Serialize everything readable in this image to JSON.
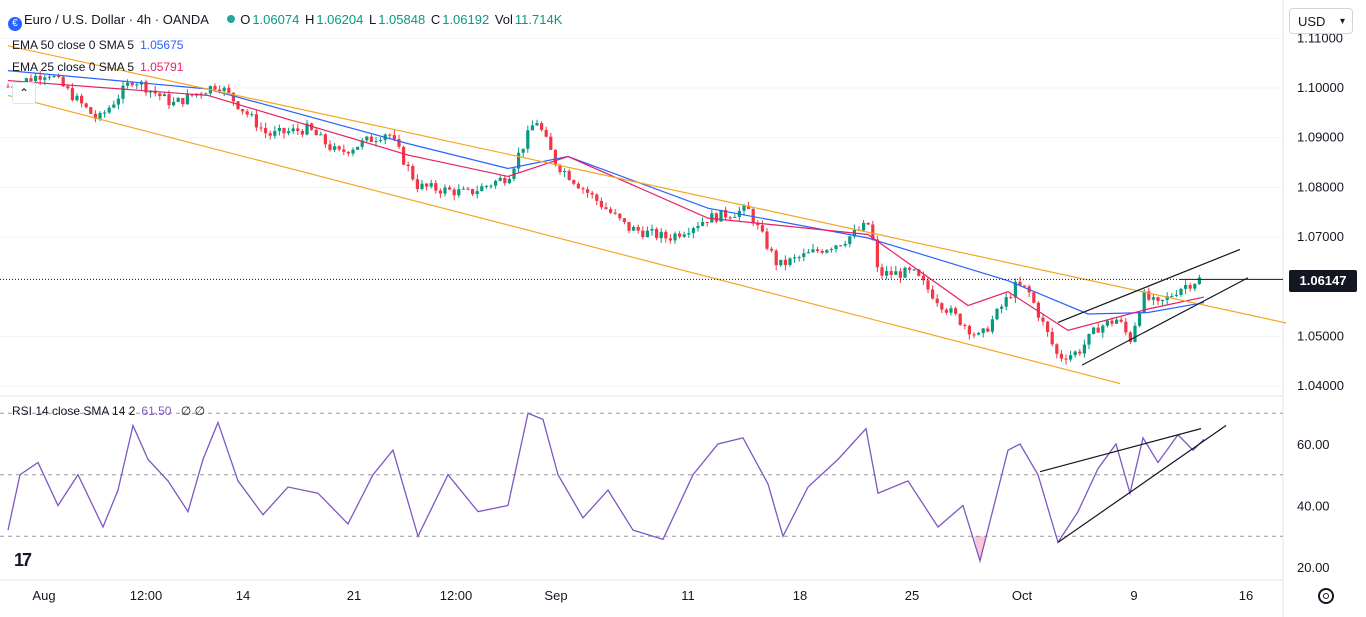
{
  "header": {
    "symbol": "Euro / U.S. Dollar · 4h · OANDA",
    "open_label": "O",
    "open": "1.06074",
    "high_label": "H",
    "high": "1.06204",
    "low_label": "L",
    "low": "1.05848",
    "close_label": "C",
    "close": "1.06192",
    "vol_label": "Vol",
    "vol": "11.714K"
  },
  "indicators": [
    {
      "label": "EMA 50 close 0 SMA 5",
      "value": "1.05675",
      "color": "#2962ff"
    },
    {
      "label": "EMA 25 close 0 SMA 5",
      "value": "1.05791",
      "color": "#e91e63"
    }
  ],
  "rsi": {
    "label": "RSI 14 close SMA 14 2",
    "value": "61.50",
    "extra": "∅ ∅",
    "color": "#7e57c2"
  },
  "currency": "USD",
  "last_price": "1.06147",
  "colors": {
    "up": "#089981",
    "down": "#f23645",
    "ema50": "#2962ff",
    "ema25": "#e91e63",
    "channel": "#f5a623",
    "rsi": "#7e57c2",
    "trend": "#131722",
    "grid": "#f0f3fa"
  },
  "chart_data": [
    {
      "type": "candlestick",
      "y_ticks": [
        "1.11000",
        "1.10000",
        "1.09000",
        "1.08000",
        "1.07000",
        "1.05000",
        "1.04000"
      ],
      "ylim": [
        1.04,
        1.11
      ],
      "x_ticks": [
        "Aug",
        "12:00",
        "14",
        "21",
        "12:00",
        "Sep",
        "11",
        "18",
        "25",
        "Oct",
        "9",
        "16"
      ],
      "close_path": [
        {
          "x": 0,
          "y": 1.1003
        },
        {
          "x": 40,
          "y": 1.1032
        },
        {
          "x": 90,
          "y": 1.0935
        },
        {
          "x": 125,
          "y": 1.1018
        },
        {
          "x": 165,
          "y": 1.0968
        },
        {
          "x": 210,
          "y": 1.1008
        },
        {
          "x": 260,
          "y": 1.0905
        },
        {
          "x": 300,
          "y": 1.0918
        },
        {
          "x": 330,
          "y": 1.0868
        },
        {
          "x": 380,
          "y": 1.0912
        },
        {
          "x": 410,
          "y": 1.0802
        },
        {
          "x": 460,
          "y": 1.0788
        },
        {
          "x": 500,
          "y": 1.0822
        },
        {
          "x": 528,
          "y": 1.0938
        },
        {
          "x": 548,
          "y": 1.0848
        },
        {
          "x": 575,
          "y": 1.0798
        },
        {
          "x": 620,
          "y": 1.0718
        },
        {
          "x": 660,
          "y": 1.0698
        },
        {
          "x": 700,
          "y": 1.0738
        },
        {
          "x": 740,
          "y": 1.0755
        },
        {
          "x": 770,
          "y": 1.0642
        },
        {
          "x": 800,
          "y": 1.0665
        },
        {
          "x": 835,
          "y": 1.0692
        },
        {
          "x": 862,
          "y": 1.0728
        },
        {
          "x": 870,
          "y": 1.0625
        },
        {
          "x": 905,
          "y": 1.0628
        },
        {
          "x": 935,
          "y": 1.0562
        },
        {
          "x": 972,
          "y": 1.0496
        },
        {
          "x": 1008,
          "y": 1.0602
        },
        {
          "x": 1020,
          "y": 1.0592
        },
        {
          "x": 1050,
          "y": 1.0458
        },
        {
          "x": 1070,
          "y": 1.0468
        },
        {
          "x": 1090,
          "y": 1.0518
        },
        {
          "x": 1110,
          "y": 1.0535
        },
        {
          "x": 1122,
          "y": 1.0492
        },
        {
          "x": 1135,
          "y": 1.0582
        },
        {
          "x": 1150,
          "y": 1.0562
        },
        {
          "x": 1172,
          "y": 1.0598
        },
        {
          "x": 1196,
          "y": 1.0619
        }
      ],
      "ema50_path": [
        {
          "x": 0,
          "y": 1.1035
        },
        {
          "x": 200,
          "y": 1.0998
        },
        {
          "x": 400,
          "y": 1.0888
        },
        {
          "x": 500,
          "y": 1.0838
        },
        {
          "x": 560,
          "y": 1.0862
        },
        {
          "x": 700,
          "y": 1.0758
        },
        {
          "x": 860,
          "y": 1.0698
        },
        {
          "x": 1000,
          "y": 1.0612
        },
        {
          "x": 1080,
          "y": 1.0545
        },
        {
          "x": 1140,
          "y": 1.0548
        },
        {
          "x": 1196,
          "y": 1.0568
        }
      ],
      "ema25_path": [
        {
          "x": 0,
          "y": 1.1015
        },
        {
          "x": 200,
          "y": 1.0985
        },
        {
          "x": 400,
          "y": 1.0865
        },
        {
          "x": 500,
          "y": 1.0822
        },
        {
          "x": 560,
          "y": 1.0862
        },
        {
          "x": 700,
          "y": 1.0738
        },
        {
          "x": 860,
          "y": 1.0705
        },
        {
          "x": 960,
          "y": 1.0562
        },
        {
          "x": 1000,
          "y": 1.059
        },
        {
          "x": 1060,
          "y": 1.0512
        },
        {
          "x": 1140,
          "y": 1.0555
        },
        {
          "x": 1196,
          "y": 1.0579
        }
      ],
      "channel_lines": [
        {
          "x1": 0,
          "y1": 1.1085,
          "x2": 1278,
          "y2": 1.0527
        },
        {
          "x1": 0,
          "y1": 1.0985,
          "x2": 1112,
          "y2": 1.0405
        }
      ],
      "wedge_lines": [
        {
          "x1": 1050,
          "y1": 1.0528,
          "x2": 1232,
          "y2": 1.0675
        },
        {
          "x1": 1074,
          "y1": 1.0442,
          "x2": 1240,
          "y2": 1.0618
        }
      ],
      "last_price_value": 1.06147
    },
    {
      "type": "line",
      "series": [
        {
          "name": "RSI",
          "points": [
            {
              "x": 0,
              "y": 32
            },
            {
              "x": 12,
              "y": 50
            },
            {
              "x": 30,
              "y": 54
            },
            {
              "x": 50,
              "y": 40
            },
            {
              "x": 70,
              "y": 50
            },
            {
              "x": 95,
              "y": 33
            },
            {
              "x": 110,
              "y": 45
            },
            {
              "x": 125,
              "y": 66
            },
            {
              "x": 140,
              "y": 55
            },
            {
              "x": 160,
              "y": 48
            },
            {
              "x": 180,
              "y": 38
            },
            {
              "x": 195,
              "y": 55
            },
            {
              "x": 210,
              "y": 67
            },
            {
              "x": 230,
              "y": 48
            },
            {
              "x": 255,
              "y": 37
            },
            {
              "x": 280,
              "y": 46
            },
            {
              "x": 310,
              "y": 44
            },
            {
              "x": 340,
              "y": 34
            },
            {
              "x": 365,
              "y": 50
            },
            {
              "x": 385,
              "y": 58
            },
            {
              "x": 410,
              "y": 30
            },
            {
              "x": 440,
              "y": 50
            },
            {
              "x": 470,
              "y": 38
            },
            {
              "x": 500,
              "y": 40
            },
            {
              "x": 520,
              "y": 70
            },
            {
              "x": 535,
              "y": 68
            },
            {
              "x": 550,
              "y": 50
            },
            {
              "x": 575,
              "y": 36
            },
            {
              "x": 600,
              "y": 45
            },
            {
              "x": 625,
              "y": 32
            },
            {
              "x": 655,
              "y": 29
            },
            {
              "x": 685,
              "y": 50
            },
            {
              "x": 710,
              "y": 60
            },
            {
              "x": 735,
              "y": 62
            },
            {
              "x": 760,
              "y": 47
            },
            {
              "x": 775,
              "y": 30
            },
            {
              "x": 800,
              "y": 46
            },
            {
              "x": 830,
              "y": 55
            },
            {
              "x": 858,
              "y": 65
            },
            {
              "x": 870,
              "y": 44
            },
            {
              "x": 900,
              "y": 48
            },
            {
              "x": 930,
              "y": 33
            },
            {
              "x": 955,
              "y": 40
            },
            {
              "x": 972,
              "y": 22
            },
            {
              "x": 1000,
              "y": 58
            },
            {
              "x": 1012,
              "y": 60
            },
            {
              "x": 1030,
              "y": 50
            },
            {
              "x": 1050,
              "y": 28
            },
            {
              "x": 1070,
              "y": 38
            },
            {
              "x": 1090,
              "y": 52
            },
            {
              "x": 1108,
              "y": 60
            },
            {
              "x": 1122,
              "y": 44
            },
            {
              "x": 1135,
              "y": 62
            },
            {
              "x": 1150,
              "y": 54
            },
            {
              "x": 1170,
              "y": 63
            },
            {
              "x": 1185,
              "y": 58
            },
            {
              "x": 1196,
              "y": 61.5
            }
          ]
        }
      ],
      "y_ticks": [
        "60.00",
        "40.00",
        "20.00"
      ],
      "ylim": [
        15,
        75
      ],
      "levels": [
        70,
        50,
        30
      ],
      "trend_lines": [
        {
          "x1": 1032,
          "y1": 51,
          "x2": 1193,
          "y2": 65
        },
        {
          "x1": 1050,
          "y1": 28,
          "x2": 1218,
          "y2": 66
        }
      ]
    }
  ]
}
